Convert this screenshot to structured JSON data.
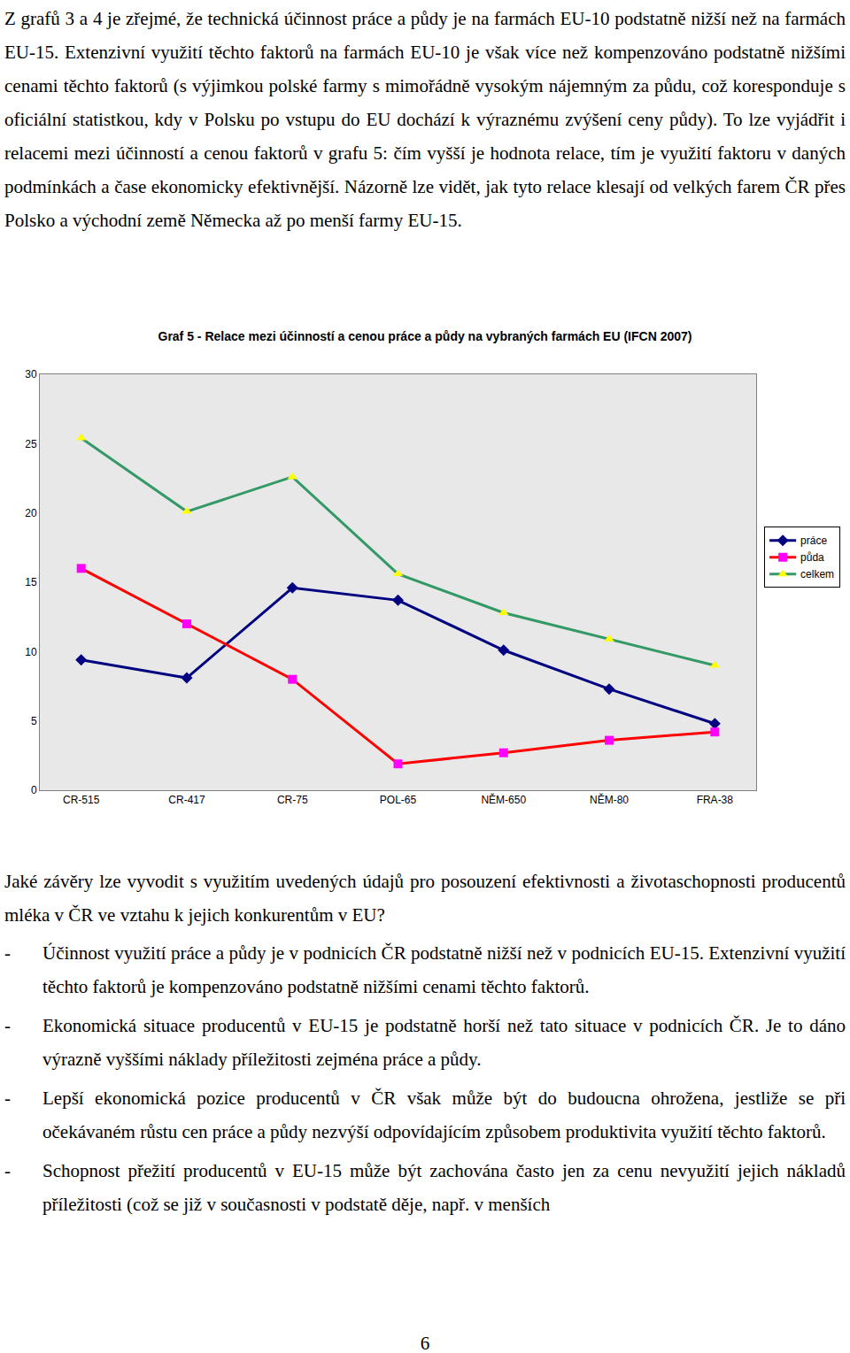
{
  "intro": "Z grafů 3 a 4 je zřejmé, že technická účinnost práce a půdy je na farmách EU-10 podstatně nižší než na farmách EU-15. Extenzivní využití těchto faktorů na farmách EU-10 je však více než kompenzováno podstatně nižšími cenami těchto faktorů (s výjimkou polské farmy s mimořádně vysokým nájemným za půdu, což koresponduje s oficiální statistkou, kdy v Polsku po vstupu do EU dochází k výraznému zvýšení ceny půdy). To lze vyjádřit i relacemi mezi účinností a cenou faktorů v grafu 5: čím vyšší je hodnota relace, tím je využití faktoru v daných podmínkách a čase ekonomicky efektivnější. Názorně lze vidět, jak tyto relace klesají od velkých farem ČR přes Polsko a východní země Německa až po menší farmy EU-15.",
  "chart_data": {
    "type": "line",
    "title": "Graf 5 - Relace mezi účinností a cenou práce a půdy na vybraných farmách EU (IFCN 2007)",
    "categories": [
      "CR-515",
      "CR-417",
      "CR-75",
      "POL-65",
      "NĚM-650",
      "NĚM-80",
      "FRA-38"
    ],
    "series": [
      {
        "name": "práce",
        "color": "#000080",
        "marker": "diamond",
        "values": [
          9.4,
          8.1,
          14.6,
          13.7,
          10.1,
          7.3,
          4.8
        ]
      },
      {
        "name": "půda",
        "color": "#ff0000",
        "marker": "square",
        "values": [
          16.0,
          12.0,
          8.0,
          1.9,
          2.7,
          3.6,
          4.2
        ]
      },
      {
        "name": "celkem",
        "color": "#339966",
        "marker": "triangle-up",
        "values": [
          25.4,
          20.1,
          22.6,
          15.6,
          12.8,
          10.9,
          9.0
        ]
      }
    ],
    "ylim": [
      0,
      30
    ],
    "yticks": [
      0,
      5,
      10,
      15,
      20,
      25,
      30
    ],
    "grid": false,
    "legend": "right"
  },
  "question": "Jaké závěry lze vyvodit s využitím uvedených údajů pro posouzení efektivnosti a životaschopnosti producentů mléka v ČR ve vztahu k jejich konkurentům v EU?",
  "bullet_mark": "-",
  "bullets": [
    "Účinnost využití práce a půdy je v podnicích ČR podstatně nižší než v podnicích EU-15. Extenzivní využití těchto faktorů je kompenzováno podstatně nižšími cenami těchto faktorů.",
    "Ekonomická situace producentů v EU-15 je podstatně horší než tato situace v podnicích ČR. Je to dáno výrazně vyššími náklady příležitosti zejména práce a půdy.",
    "Lepší ekonomická pozice producentů v ČR však může být do budoucna ohrožena, jestliže se při očekávaném růstu cen práce a půdy nezvýší odpovídajícím způsobem produktivita využití těchto faktorů.",
    "Schopnost přežití producentů v EU-15 může být zachována často jen za cenu nevyužití jejich nákladů příležitosti (což se již v současnosti v podstatě děje, např. v menších"
  ],
  "page_number": "6"
}
